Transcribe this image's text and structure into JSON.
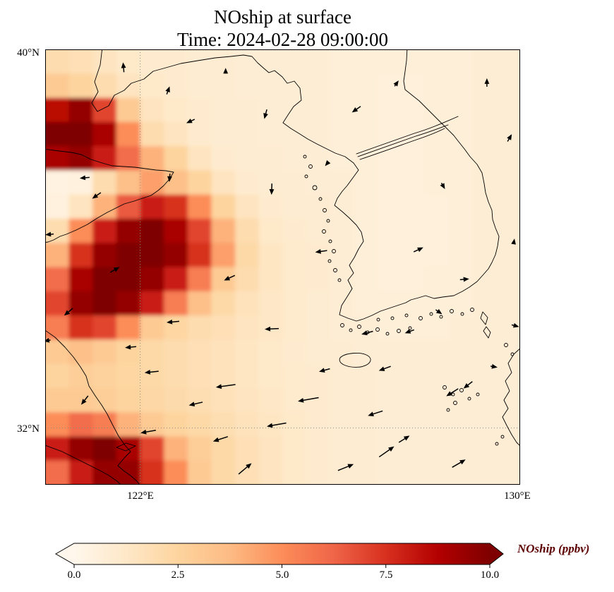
{
  "figure": {
    "title": "NOship at surface",
    "subtitle": "Time: 2024-02-28 09:00:00"
  },
  "axes": {
    "yticks": [
      {
        "label": "40°N"
      },
      {
        "label": "32°N"
      }
    ],
    "xticks": [
      {
        "label": "122°E"
      },
      {
        "label": "130°E"
      }
    ]
  },
  "colorbar": {
    "label": "NOship (ppbv)",
    "ticks": [
      "0.0",
      "2.5",
      "5.0",
      "7.5",
      "10.0"
    ]
  },
  "colors": {
    "heatmap_low": "#fff7ec",
    "heatmap_high": "#7f0000",
    "colorbar_label": "#5c0000",
    "coastline": "#000000",
    "arrows": "#000000",
    "gridlines": "#8a8a8a",
    "background": "#ffffff"
  },
  "chart_data": {
    "type": "heatmap",
    "title": "NOship at surface",
    "time": "2024-02-28 09:00:00",
    "variable": "NOship",
    "units": "ppbv",
    "colormap": "OrRd",
    "colormap_stops": [
      "#fff7ec",
      "#fee8c8",
      "#fdd49e",
      "#fdbb84",
      "#fc8d59",
      "#ef6548",
      "#d7301f",
      "#b30000",
      "#7f0000"
    ],
    "vmin": 0,
    "vmax": 10,
    "extend": "both",
    "lon_range": [
      120,
      130
    ],
    "lat_range": [
      30.8,
      40
    ],
    "xtick_lons": [
      122,
      130
    ],
    "ytick_lats": [
      40,
      32
    ],
    "gridline_lon": [
      122
    ],
    "gridline_lat": [
      32
    ],
    "grid_shape": [
      18,
      20
    ],
    "grid": [
      [
        2.0,
        1.8,
        1.5,
        1.2,
        1.0,
        1.0,
        0.9,
        0.9,
        0.8,
        0.8,
        0.8,
        0.8,
        0.7,
        0.7,
        0.7,
        0.7,
        0.7,
        0.7,
        0.8,
        0.8
      ],
      [
        3.0,
        2.5,
        2.0,
        1.5,
        1.2,
        1.0,
        0.9,
        0.9,
        0.8,
        0.8,
        0.8,
        0.8,
        0.7,
        0.7,
        0.6,
        0.6,
        0.7,
        0.7,
        0.8,
        0.8
      ],
      [
        8.5,
        9.5,
        7.0,
        3.0,
        1.5,
        1.2,
        1.0,
        0.9,
        0.9,
        0.8,
        0.8,
        0.8,
        0.7,
        0.7,
        0.6,
        0.6,
        0.7,
        0.7,
        0.8,
        0.8
      ],
      [
        10,
        10,
        9.0,
        5.0,
        2.0,
        1.5,
        1.0,
        0.9,
        0.9,
        0.8,
        0.8,
        0.8,
        0.7,
        0.7,
        0.6,
        0.6,
        0.7,
        0.7,
        0.8,
        0.8
      ],
      [
        9.0,
        9.5,
        8.0,
        6.0,
        4.0,
        2.5,
        1.5,
        1.0,
        0.9,
        0.9,
        0.8,
        0.8,
        0.7,
        0.7,
        0.6,
        0.6,
        0.7,
        0.7,
        0.8,
        0.8
      ],
      [
        0.4,
        0.5,
        2.0,
        3.5,
        4.5,
        3.5,
        2.5,
        1.5,
        1.0,
        0.9,
        0.9,
        0.8,
        0.8,
        0.7,
        0.6,
        0.6,
        0.7,
        0.7,
        0.8,
        0.8
      ],
      [
        0.5,
        1.5,
        4.0,
        6.5,
        8.0,
        7.5,
        5.0,
        2.5,
        1.5,
        1.0,
        0.9,
        0.9,
        0.8,
        0.7,
        0.6,
        0.6,
        0.6,
        0.7,
        0.8,
        0.8
      ],
      [
        2.0,
        5.0,
        8.0,
        9.5,
        10,
        9.0,
        7.0,
        4.0,
        2.0,
        1.2,
        1.0,
        0.9,
        0.8,
        0.7,
        0.6,
        0.6,
        0.6,
        0.7,
        0.8,
        0.8
      ],
      [
        4.0,
        7.5,
        9.5,
        10,
        10,
        9.5,
        7.5,
        4.5,
        2.2,
        1.4,
        1.1,
        1.0,
        0.8,
        0.7,
        0.6,
        0.6,
        0.6,
        0.7,
        0.8,
        0.8
      ],
      [
        6.0,
        9.0,
        10,
        10,
        9.5,
        8.0,
        5.5,
        3.0,
        2.0,
        1.4,
        1.1,
        1.0,
        0.8,
        0.7,
        0.6,
        0.6,
        0.7,
        0.7,
        0.8,
        0.8
      ],
      [
        7.0,
        9.5,
        10,
        9.5,
        8.0,
        5.5,
        3.5,
        2.2,
        1.6,
        1.3,
        1.1,
        0.9,
        0.8,
        0.7,
        0.7,
        0.7,
        0.7,
        0.7,
        0.8,
        0.8
      ],
      [
        5.5,
        7.5,
        7.0,
        5.0,
        3.0,
        2.4,
        2.0,
        1.8,
        1.5,
        1.3,
        1.1,
        0.9,
        0.8,
        0.8,
        0.7,
        0.7,
        0.7,
        0.8,
        0.8,
        0.8
      ],
      [
        3.0,
        3.5,
        3.0,
        2.5,
        2.2,
        2.0,
        1.8,
        1.6,
        1.4,
        1.2,
        1.0,
        0.9,
        0.9,
        0.8,
        0.8,
        0.8,
        0.8,
        0.8,
        0.8,
        0.8
      ],
      [
        2.5,
        2.8,
        2.6,
        2.4,
        2.2,
        2.0,
        1.8,
        1.6,
        1.4,
        1.2,
        1.1,
        1.0,
        0.9,
        0.9,
        0.8,
        0.8,
        0.8,
        0.8,
        0.8,
        0.8
      ],
      [
        3.0,
        3.0,
        2.8,
        2.5,
        2.3,
        2.1,
        1.9,
        1.7,
        1.5,
        1.3,
        1.1,
        1.0,
        0.9,
        0.9,
        0.8,
        0.8,
        0.8,
        0.8,
        0.8,
        0.8
      ],
      [
        5.0,
        6.0,
        5.5,
        4.0,
        3.0,
        2.5,
        2.2,
        1.9,
        1.6,
        1.4,
        1.2,
        1.0,
        0.9,
        0.9,
        0.8,
        0.8,
        0.8,
        0.8,
        0.8,
        0.8
      ],
      [
        8.0,
        9.5,
        10,
        9.0,
        7.0,
        4.0,
        2.8,
        2.2,
        1.8,
        1.5,
        1.2,
        1.0,
        0.9,
        0.9,
        0.8,
        0.8,
        0.8,
        0.8,
        0.8,
        0.8
      ],
      [
        6.0,
        8.0,
        9.5,
        9.5,
        7.5,
        5.0,
        3.0,
        2.2,
        1.8,
        1.5,
        1.2,
        1.0,
        0.9,
        0.9,
        0.8,
        0.8,
        0.8,
        0.8,
        0.8,
        0.8
      ]
    ],
    "arrows": [
      {
        "x": 0.165,
        "y": 0.041,
        "a": 95,
        "l": 14
      },
      {
        "x": 0.259,
        "y": 0.094,
        "a": 70,
        "l": 12
      },
      {
        "x": 0.38,
        "y": 0.049,
        "a": 90,
        "l": 8
      },
      {
        "x": 0.464,
        "y": 0.149,
        "a": 255,
        "l": 14
      },
      {
        "x": 0.306,
        "y": 0.165,
        "a": 205,
        "l": 13
      },
      {
        "x": 0.655,
        "y": 0.138,
        "a": 215,
        "l": 15
      },
      {
        "x": 0.74,
        "y": 0.078,
        "a": 55,
        "l": 10
      },
      {
        "x": 0.93,
        "y": 0.076,
        "a": 90,
        "l": 12
      },
      {
        "x": 0.978,
        "y": 0.203,
        "a": 60,
        "l": 12
      },
      {
        "x": 0.083,
        "y": 0.295,
        "a": 185,
        "l": 14
      },
      {
        "x": 0.108,
        "y": 0.336,
        "a": 215,
        "l": 15
      },
      {
        "x": 0.262,
        "y": 0.295,
        "a": 265,
        "l": 12
      },
      {
        "x": 0.477,
        "y": 0.321,
        "a": 268,
        "l": 16
      },
      {
        "x": 0.593,
        "y": 0.263,
        "a": 230,
        "l": 8
      },
      {
        "x": 0.838,
        "y": 0.314,
        "a": 300,
        "l": 10
      },
      {
        "x": 0.009,
        "y": 0.425,
        "a": 185,
        "l": 12
      },
      {
        "x": 0.147,
        "y": 0.506,
        "a": 30,
        "l": 15
      },
      {
        "x": 0.388,
        "y": 0.525,
        "a": 205,
        "l": 17
      },
      {
        "x": 0.581,
        "y": 0.464,
        "a": 188,
        "l": 17
      },
      {
        "x": 0.786,
        "y": 0.46,
        "a": 25,
        "l": 15
      },
      {
        "x": 0.883,
        "y": 0.528,
        "a": 5,
        "l": 13
      },
      {
        "x": 0.987,
        "y": 0.441,
        "a": 80,
        "l": 8
      },
      {
        "x": 0.049,
        "y": 0.603,
        "a": 220,
        "l": 16
      },
      {
        "x": 0.269,
        "y": 0.626,
        "a": 185,
        "l": 18
      },
      {
        "x": 0.477,
        "y": 0.642,
        "a": 183,
        "l": 20
      },
      {
        "x": 0.678,
        "y": 0.651,
        "a": 195,
        "l": 17
      },
      {
        "x": 0.829,
        "y": 0.603,
        "a": 325,
        "l": 11
      },
      {
        "x": 0.99,
        "y": 0.635,
        "a": 345,
        "l": 11
      },
      {
        "x": 0.18,
        "y": 0.684,
        "a": 185,
        "l": 16
      },
      {
        "x": 0.004,
        "y": 0.669,
        "a": 190,
        "l": 10
      },
      {
        "x": 0.224,
        "y": 0.741,
        "a": 186,
        "l": 20
      },
      {
        "x": 0.38,
        "y": 0.773,
        "a": 188,
        "l": 28
      },
      {
        "x": 0.317,
        "y": 0.814,
        "a": 193,
        "l": 20
      },
      {
        "x": 0.554,
        "y": 0.804,
        "a": 190,
        "l": 30
      },
      {
        "x": 0.715,
        "y": 0.733,
        "a": 200,
        "l": 18
      },
      {
        "x": 0.857,
        "y": 0.788,
        "a": 212,
        "l": 20
      },
      {
        "x": 0.89,
        "y": 0.771,
        "a": 218,
        "l": 16
      },
      {
        "x": 0.083,
        "y": 0.806,
        "a": 232,
        "l": 16
      },
      {
        "x": 0.217,
        "y": 0.878,
        "a": 190,
        "l": 22
      },
      {
        "x": 0.369,
        "y": 0.895,
        "a": 198,
        "l": 22
      },
      {
        "x": 0.487,
        "y": 0.862,
        "a": 190,
        "l": 28
      },
      {
        "x": 0.695,
        "y": 0.836,
        "a": 198,
        "l": 22
      },
      {
        "x": 0.756,
        "y": 0.895,
        "a": 32,
        "l": 18
      },
      {
        "x": 0.719,
        "y": 0.924,
        "a": 35,
        "l": 26
      },
      {
        "x": 0.871,
        "y": 0.951,
        "a": 30,
        "l": 22
      },
      {
        "x": 0.633,
        "y": 0.96,
        "a": 22,
        "l": 24
      },
      {
        "x": 0.421,
        "y": 0.963,
        "a": 40,
        "l": 24
      },
      {
        "x": 0.945,
        "y": 0.729,
        "a": 350,
        "l": 10
      },
      {
        "x": 0.767,
        "y": 0.648,
        "a": 200,
        "l": 14
      },
      {
        "x": 0.588,
        "y": 0.737,
        "a": 195,
        "l": 16
      }
    ]
  }
}
